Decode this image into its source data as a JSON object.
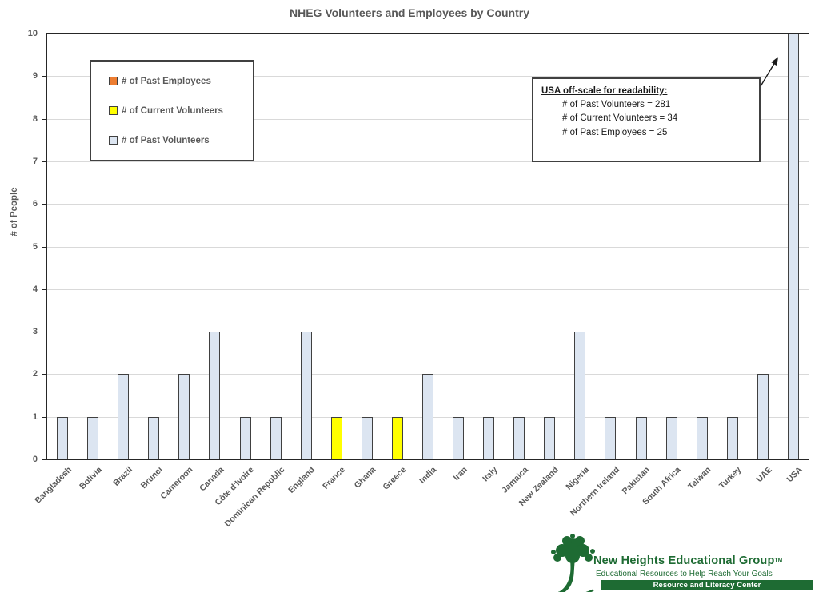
{
  "chart_data": {
    "type": "bar",
    "title": "NHEG Volunteers and Employees by Country",
    "xlabel": "",
    "ylabel": "# of People",
    "ylim": [
      0,
      10
    ],
    "ytick_step": 1,
    "grid": true,
    "legend_position": "upper-left-inside",
    "series_legend": [
      {
        "name": "# of Past Employees",
        "color": "#ED7D31"
      },
      {
        "name": "# of Current Volunteers",
        "color": "#FFFF00"
      },
      {
        "name": "# of Past Volunteers",
        "color": "#DCE5F1"
      }
    ],
    "bars": [
      {
        "category": "Bangladesh",
        "value": 1,
        "series": "# of Past Volunteers"
      },
      {
        "category": "Bolivia",
        "value": 1,
        "series": "# of Past Volunteers"
      },
      {
        "category": "Brazil",
        "value": 2,
        "series": "# of Past Volunteers"
      },
      {
        "category": "Brunei",
        "value": 1,
        "series": "# of Past Volunteers"
      },
      {
        "category": "Cameroon",
        "value": 2,
        "series": "# of Past Volunteers"
      },
      {
        "category": "Canada",
        "value": 3,
        "series": "# of Past Volunteers"
      },
      {
        "category": "Côte d'Ivoire",
        "value": 1,
        "series": "# of Past Volunteers"
      },
      {
        "category": "Dominican Republic",
        "value": 1,
        "series": "# of Past Volunteers"
      },
      {
        "category": "England",
        "value": 3,
        "series": "# of Past Volunteers"
      },
      {
        "category": "France",
        "value": 1,
        "series": "# of Current Volunteers"
      },
      {
        "category": "Ghana",
        "value": 1,
        "series": "# of Past Volunteers"
      },
      {
        "category": "Greece",
        "value": 1,
        "series": "# of Current Volunteers"
      },
      {
        "category": "India",
        "value": 2,
        "series": "# of Past Volunteers"
      },
      {
        "category": "Iran",
        "value": 1,
        "series": "# of Past Volunteers"
      },
      {
        "category": "Italy",
        "value": 1,
        "series": "# of Past Volunteers"
      },
      {
        "category": "Jamaica",
        "value": 1,
        "series": "# of Past Volunteers"
      },
      {
        "category": "New Zealand",
        "value": 1,
        "series": "# of Past Volunteers"
      },
      {
        "category": "Nigeria",
        "value": 3,
        "series": "# of Past Volunteers"
      },
      {
        "category": "Northern Ireland",
        "value": 1,
        "series": "# of Past Volunteers"
      },
      {
        "category": "Pakistan",
        "value": 1,
        "series": "# of Past Volunteers"
      },
      {
        "category": "South Africa",
        "value": 1,
        "series": "# of Past Volunteers"
      },
      {
        "category": "Taiwan",
        "value": 1,
        "series": "# of Past Volunteers"
      },
      {
        "category": "Turkey",
        "value": 1,
        "series": "# of Past Volunteers"
      },
      {
        "category": "UAE",
        "value": 2,
        "series": "# of Past Volunteers"
      },
      {
        "category": "USA",
        "value": 281,
        "series": "# of Past Volunteers",
        "clipped_at": 10
      }
    ],
    "annotation": {
      "title": "USA off-scale for readability:",
      "lines": [
        "# of Past Volunteers = 281",
        "# of Current Volunteers = 34",
        "# of Past Employees = 25"
      ]
    }
  },
  "colors": {
    "bar_border": "#404040",
    "gridline": "#D9D9D9",
    "axis_line": "#262626",
    "axis_text": "#595959",
    "annotation_text": "#1A1A1A",
    "logo_green": "#1E6B33"
  },
  "logo": {
    "name": "New Heights Educational Group",
    "trademark": "TM",
    "tagline": "Educational Resources to Help Reach Your Goals",
    "banner": "Resource and Literacy Center"
  }
}
